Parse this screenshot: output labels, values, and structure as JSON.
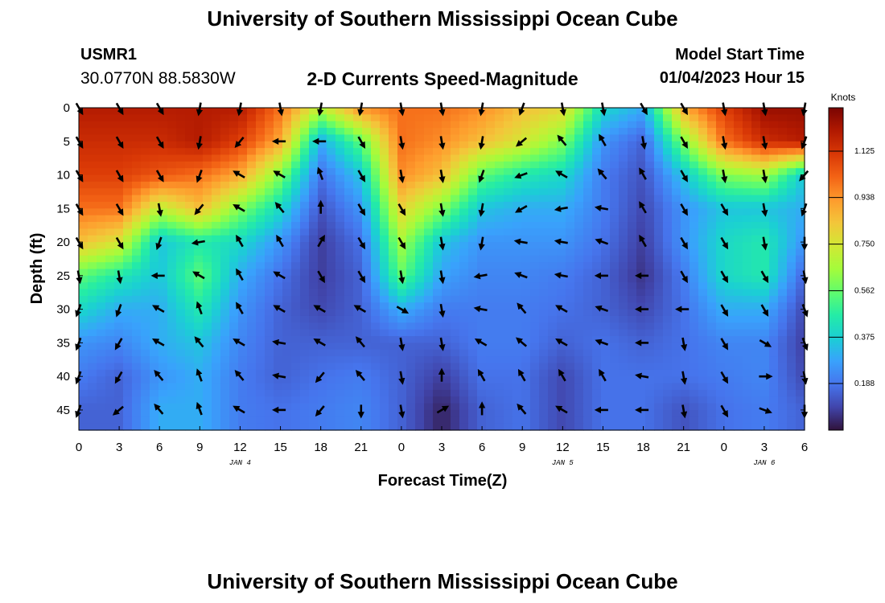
{
  "header": {
    "title": "University of Southern Mississippi Ocean Cube",
    "station_id": "USMR1",
    "coordinates": "30.0770N  88.5830W",
    "subtitle": "2-D Currents Speed-Magnitude",
    "model_start_label": "Model Start Time",
    "model_start_value": "01/04/2023 Hour 15"
  },
  "footer": {
    "title": "University of Southern Mississippi Ocean Cube"
  },
  "chart_data": {
    "type": "heatmap",
    "title": "2-D Currents Speed-Magnitude",
    "xlabel": "Forecast Time(Z)",
    "ylabel": "Depth (ft)",
    "x_ticks": [
      "0",
      "3",
      "6",
      "9",
      "12",
      "15",
      "18",
      "21",
      "0",
      "3",
      "6",
      "9",
      "12",
      "15",
      "18",
      "21",
      "0",
      "3",
      "6"
    ],
    "date_labels": [
      {
        "text": "JAN 4",
        "tick_index": 4
      },
      {
        "text": "JAN 5",
        "tick_index": 12
      },
      {
        "text": "JAN 6",
        "tick_index": 17
      }
    ],
    "xlim": [
      0,
      54
    ],
    "y_ticks": [
      0,
      5,
      10,
      15,
      20,
      25,
      30,
      35,
      40,
      45
    ],
    "ylim": [
      0,
      48
    ],
    "colorbar": {
      "label": "Knots",
      "ticks": [
        "1.125",
        "0.938",
        "0.750",
        "0.562",
        "0.375",
        "0.188"
      ],
      "tick_values": [
        1.125,
        0.938,
        0.75,
        0.562,
        0.375,
        0.188
      ],
      "range": [
        0,
        1.3
      ],
      "colors": [
        "#30123b",
        "#4145ab",
        "#4675ed",
        "#39a2fc",
        "#1bcfd4",
        "#24eca6",
        "#61fc6c",
        "#a4fc3b",
        "#d1e834",
        "#f3c63a",
        "#fe9b2d",
        "#f36315",
        "#d93806",
        "#b11901",
        "#7a0402"
      ]
    },
    "sample_hours": [
      0,
      3,
      6,
      9,
      12,
      15,
      18,
      21,
      24,
      27,
      30,
      33,
      36,
      39,
      42,
      45,
      48,
      51,
      54
    ],
    "sample_depths": [
      0,
      5,
      10,
      15,
      20,
      25,
      30,
      35,
      40,
      45
    ],
    "speed_knots": [
      [
        1.2,
        1.2,
        1.2,
        1.2,
        1.2,
        1.0,
        0.7,
        0.95,
        1.0,
        1.0,
        0.95,
        0.85,
        0.8,
        0.4,
        0.3,
        0.9,
        1.1,
        1.25,
        1.25
      ],
      [
        1.15,
        1.15,
        1.15,
        1.2,
        1.1,
        0.9,
        0.3,
        0.55,
        1.0,
        0.95,
        0.85,
        0.75,
        0.6,
        0.25,
        0.15,
        0.6,
        1.0,
        1.15,
        1.2
      ],
      [
        1.1,
        1.1,
        1.05,
        1.0,
        0.9,
        0.6,
        0.18,
        0.35,
        0.95,
        0.85,
        0.55,
        0.45,
        0.4,
        0.2,
        0.12,
        0.35,
        0.6,
        0.65,
        0.35
      ],
      [
        1.0,
        1.0,
        0.7,
        0.85,
        0.6,
        0.4,
        0.12,
        0.25,
        0.8,
        0.6,
        0.35,
        0.3,
        0.3,
        0.2,
        0.1,
        0.25,
        0.35,
        0.35,
        0.3
      ],
      [
        0.85,
        0.75,
        0.35,
        0.45,
        0.4,
        0.25,
        0.08,
        0.18,
        0.65,
        0.35,
        0.25,
        0.25,
        0.25,
        0.18,
        0.08,
        0.25,
        0.4,
        0.45,
        0.25
      ],
      [
        0.55,
        0.45,
        0.35,
        0.55,
        0.3,
        0.18,
        0.08,
        0.15,
        0.55,
        0.28,
        0.22,
        0.22,
        0.2,
        0.15,
        0.06,
        0.2,
        0.4,
        0.45,
        0.15
      ],
      [
        0.4,
        0.3,
        0.3,
        0.45,
        0.25,
        0.15,
        0.1,
        0.15,
        0.3,
        0.2,
        0.2,
        0.2,
        0.18,
        0.15,
        0.1,
        0.18,
        0.3,
        0.3,
        0.1
      ],
      [
        0.25,
        0.22,
        0.3,
        0.35,
        0.22,
        0.15,
        0.15,
        0.15,
        0.15,
        0.15,
        0.2,
        0.2,
        0.15,
        0.18,
        0.15,
        0.18,
        0.22,
        0.22,
        0.08
      ],
      [
        0.2,
        0.15,
        0.25,
        0.3,
        0.2,
        0.15,
        0.18,
        0.2,
        0.15,
        0.08,
        0.18,
        0.18,
        0.1,
        0.18,
        0.18,
        0.18,
        0.2,
        0.22,
        0.1
      ],
      [
        0.15,
        0.15,
        0.3,
        0.3,
        0.2,
        0.18,
        0.2,
        0.22,
        0.15,
        0.03,
        0.15,
        0.18,
        0.1,
        0.18,
        0.18,
        0.12,
        0.18,
        0.2,
        0.15
      ]
    ],
    "direction_deg": [
      [
        150,
        150,
        150,
        190,
        190,
        170,
        190,
        190,
        170,
        170,
        190,
        200,
        170,
        170,
        150,
        150,
        170,
        170,
        190
      ],
      [
        150,
        150,
        150,
        190,
        220,
        270,
        270,
        150,
        170,
        170,
        190,
        230,
        320,
        330,
        170,
        150,
        170,
        170,
        200
      ],
      [
        150,
        150,
        150,
        200,
        300,
        300,
        340,
        150,
        170,
        170,
        200,
        250,
        300,
        320,
        330,
        150,
        170,
        170,
        220
      ],
      [
        150,
        150,
        170,
        220,
        300,
        320,
        0,
        150,
        150,
        170,
        190,
        240,
        260,
        280,
        330,
        150,
        150,
        170,
        200
      ],
      [
        150,
        150,
        200,
        260,
        330,
        330,
        30,
        150,
        150,
        170,
        190,
        280,
        280,
        290,
        330,
        150,
        150,
        170,
        180
      ],
      [
        170,
        170,
        270,
        300,
        330,
        300,
        150,
        150,
        170,
        170,
        260,
        290,
        280,
        270,
        270,
        150,
        150,
        150,
        170
      ],
      [
        200,
        200,
        300,
        340,
        330,
        300,
        300,
        300,
        120,
        170,
        280,
        320,
        300,
        290,
        270,
        270,
        150,
        150,
        160
      ],
      [
        200,
        210,
        300,
        320,
        300,
        280,
        300,
        320,
        170,
        170,
        300,
        310,
        300,
        290,
        270,
        170,
        150,
        120,
        160
      ],
      [
        200,
        210,
        320,
        340,
        320,
        280,
        220,
        320,
        170,
        0,
        330,
        330,
        330,
        330,
        280,
        170,
        150,
        90,
        170
      ],
      [
        200,
        230,
        320,
        340,
        300,
        270,
        220,
        180,
        170,
        60,
        0,
        320,
        300,
        270,
        270,
        170,
        150,
        110,
        180
      ]
    ]
  }
}
